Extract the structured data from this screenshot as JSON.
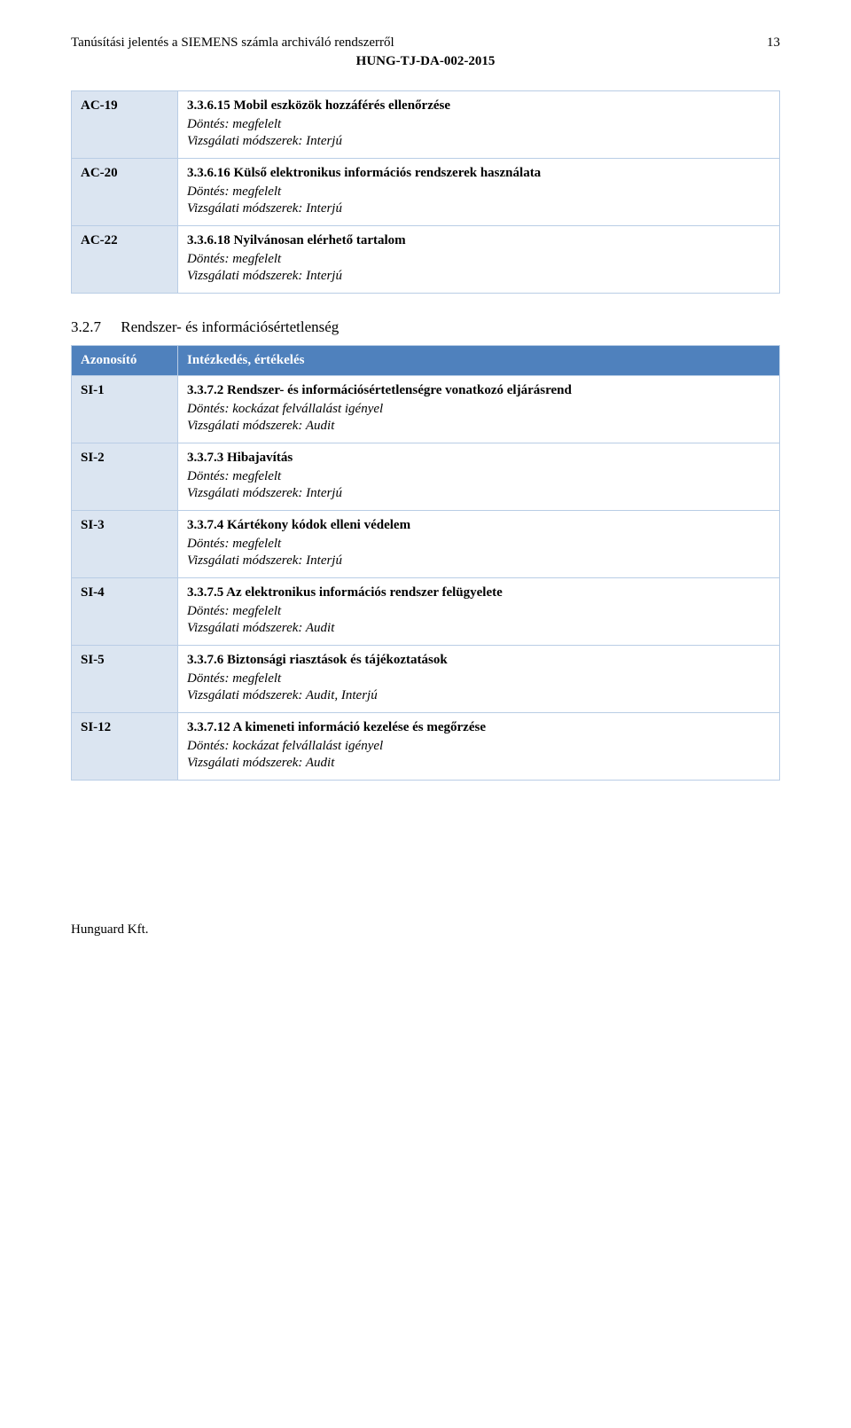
{
  "header": {
    "title": "Tanúsítási jelentés a SIEMENS számla archiváló rendszerről",
    "subtitle": "HUNG-TJ-DA-002-2015",
    "page_number": "13"
  },
  "table1": {
    "rows": [
      {
        "id": "AC-19",
        "title": "3.3.6.15 Mobil eszközök hozzáférés ellenőrzése",
        "dontes": "Döntés: megfelelt",
        "vizsg": "Vizsgálati módszerek: Interjú"
      },
      {
        "id": "AC-20",
        "title": "3.3.6.16 Külső elektronikus információs rendszerek használata",
        "dontes": "Döntés: megfelelt",
        "vizsg": "Vizsgálati módszerek: Interjú"
      },
      {
        "id": "AC-22",
        "title": "3.3.6.18 Nyilvánosan elérhető tartalom",
        "dontes": "Döntés: megfelelt",
        "vizsg": "Vizsgálati módszerek: Interjú"
      }
    ]
  },
  "section": {
    "number": "3.2.7",
    "title": "Rendszer- és információsértetlenség"
  },
  "table2": {
    "header_id": "Azonosító",
    "header_desc": "Intézkedés, értékelés",
    "rows": [
      {
        "id": "SI-1",
        "title": "3.3.7.2 Rendszer- és információsértetlenségre vonatkozó eljárásrend",
        "dontes": "Döntés: kockázat felvállalást igényel",
        "vizsg": "Vizsgálati módszerek: Audit"
      },
      {
        "id": "SI-2",
        "title": "3.3.7.3 Hibajavítás",
        "dontes": "Döntés: megfelelt",
        "vizsg": "Vizsgálati módszerek: Interjú"
      },
      {
        "id": "SI-3",
        "title": "3.3.7.4 Kártékony kódok elleni védelem",
        "dontes": "Döntés: megfelelt",
        "vizsg": "Vizsgálati módszerek: Interjú"
      },
      {
        "id": "SI-4",
        "title": "3.3.7.5 Az elektronikus információs rendszer felügyelete",
        "dontes": "Döntés: megfelelt",
        "vizsg": "Vizsgálati módszerek: Audit"
      },
      {
        "id": "SI-5",
        "title": "3.3.7.6 Biztonsági riasztások és tájékoztatások",
        "dontes": "Döntés: megfelelt",
        "vizsg": "Vizsgálati módszerek: Audit, Interjú"
      },
      {
        "id": "SI-12",
        "title": "3.3.7.12 A kimeneti információ kezelése és megőrzése",
        "dontes": "Döntés: kockázat felvállalást igényel",
        "vizsg": "Vizsgálati módszerek: Audit"
      }
    ]
  },
  "footer": "Hunguard Kft.",
  "colors": {
    "table_header_bg": "#4f81bd",
    "table_header_fg": "#ffffff",
    "idcol_bg": "#dbe5f1",
    "border": "#b9cde5",
    "page_bg": "#ffffff",
    "text": "#000000"
  }
}
